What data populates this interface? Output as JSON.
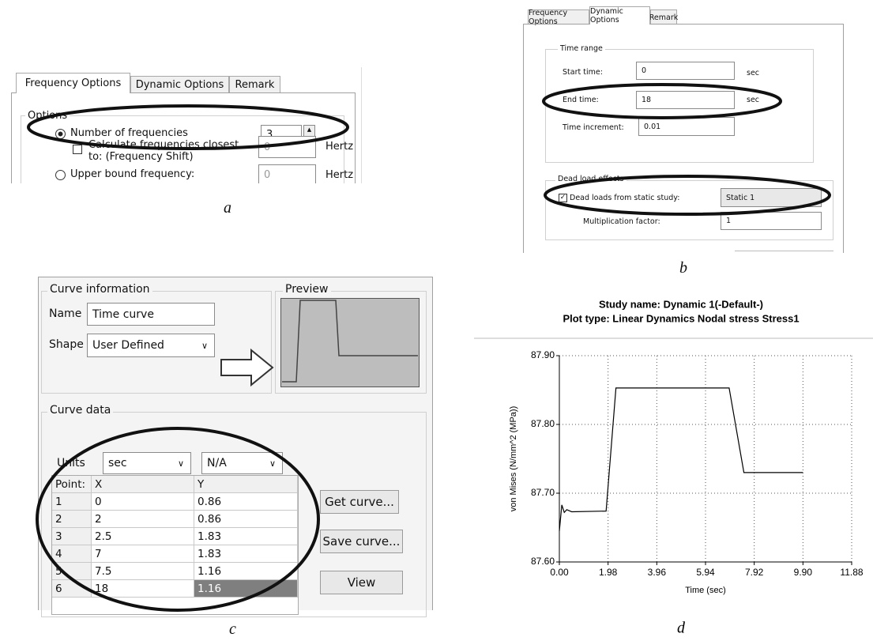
{
  "panel_a": {
    "tabs": [
      "Frequency Options",
      "Dynamic Options",
      "Remark"
    ],
    "group": "Options",
    "number_of_frequencies": {
      "label": "Number of frequencies",
      "value": 3
    },
    "shift": {
      "label_lines": [
        "Calculate frequencies closest",
        "to: (Frequency Shift)"
      ],
      "value": 0,
      "unit": "Hertz"
    },
    "upper_bound": {
      "label": "Upper bound frequency:",
      "value": 0,
      "unit": "Hertz"
    },
    "caption": "a"
  },
  "panel_b": {
    "tabs": [
      "Frequency Options",
      "Dynamic Options",
      "Remark"
    ],
    "time_range": {
      "title": "Time range",
      "start": {
        "label": "Start time:",
        "value": 0,
        "unit": "sec"
      },
      "end": {
        "label": "End time:",
        "value": 18,
        "unit": "sec"
      },
      "increment": {
        "label": "Time increment:",
        "value": 0.01
      }
    },
    "dead_load": {
      "title": "Dead load effects",
      "study_label": "Dead loads from static study:",
      "study": "Static 1",
      "factor_label": "Multiplication factor:",
      "factor": 1
    },
    "caption": "b"
  },
  "panel_c": {
    "curve_information": {
      "title": "Curve information",
      "name_label": "Name",
      "name": "Time curve",
      "shape_label": "Shape",
      "shape": "User Defined"
    },
    "preview": "Preview",
    "curve_data": {
      "title": "Curve data",
      "units_label": "Units",
      "units": [
        "sec",
        "N/A"
      ],
      "table": {
        "header": [
          "Point:",
          "X",
          "Y"
        ],
        "rows": [
          [
            1,
            0,
            0.86
          ],
          [
            2,
            2,
            0.86
          ],
          [
            3,
            2.5,
            1.83
          ],
          [
            4,
            7,
            1.83
          ],
          [
            5,
            7.5,
            1.16
          ],
          [
            6,
            18,
            1.16
          ]
        ]
      },
      "buttons": [
        "Get curve...",
        "Save curve...",
        "View"
      ]
    },
    "caption": "c"
  },
  "chart_data": {
    "type": "line",
    "title": [
      "Study name: Dynamic 1(-Default-)",
      "Plot type: Linear Dynamics Nodal stress Stress1"
    ],
    "x_label": "Time (sec)",
    "y_label": "von Mises (N/mm^2 (MPa))",
    "x": [
      0,
      0.1,
      0.2,
      0.3,
      0.5,
      1.9,
      2.3,
      6.9,
      7.5,
      9.9
    ],
    "values": [
      87.645,
      87.683,
      87.672,
      87.676,
      87.673,
      87.674,
      87.853,
      87.853,
      87.73,
      87.73
    ],
    "color": "#000000",
    "xlim": [
      0,
      11.88
    ],
    "xticks": [
      {
        "value": 0,
        "label": "0.00"
      },
      1.98,
      3.96,
      5.94,
      7.92,
      {
        "value": 9.9,
        "label": "9.90"
      },
      11.88
    ],
    "ylim": [
      87.6,
      87.9
    ],
    "yticks": [
      {
        "value": 87.6,
        "label": "87.60"
      },
      {
        "value": 87.7,
        "label": "87.70"
      },
      {
        "value": 87.8,
        "label": "87.80"
      },
      {
        "value": 87.9,
        "label": "87.90"
      }
    ],
    "grid": true,
    "caption": "d"
  }
}
